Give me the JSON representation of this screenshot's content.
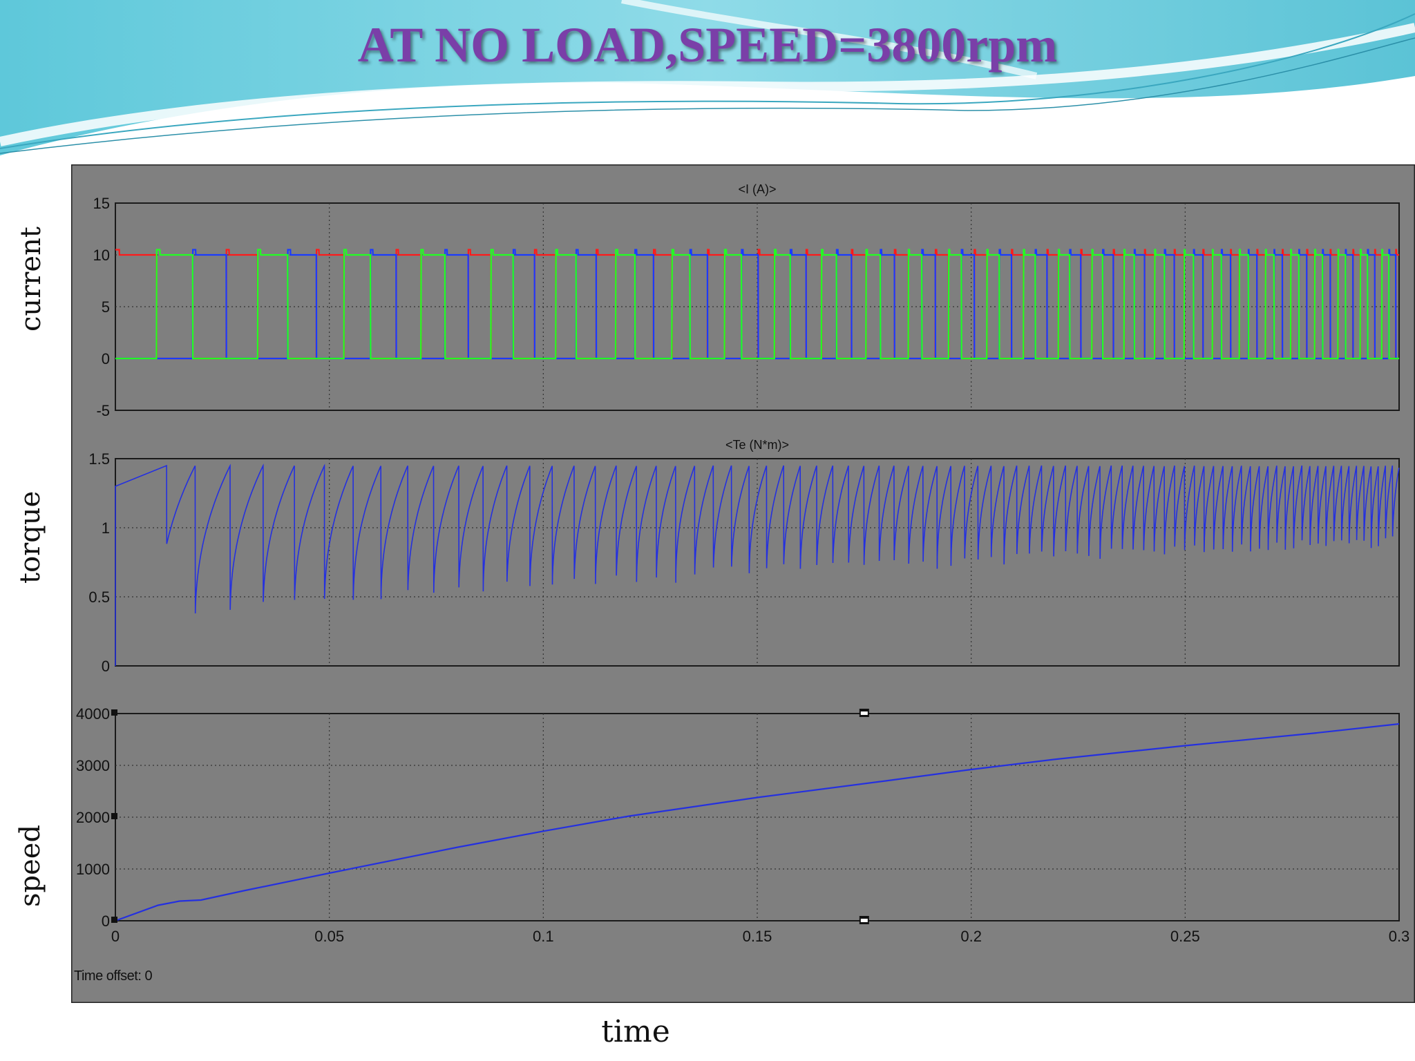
{
  "slide": {
    "title": "AT NO LOAD,SPEED=3800rpm",
    "left_labels": {
      "current": "current",
      "torque": "torque",
      "speed": "speed"
    },
    "bottom_label": "time"
  },
  "scope": {
    "time_offset_label": "Time offset:",
    "time_offset_value": "0"
  },
  "colors": {
    "scope_bg": "#808080",
    "plot_bg": "#7f7f7f",
    "phase_a": "#ff1a1a",
    "phase_b": "#1a3cff",
    "phase_c": "#22ff22",
    "torque": "#2430e0",
    "speed": "#2430e0",
    "title": "#7a3fa8"
  },
  "chart_data": [
    {
      "type": "line",
      "title": "<I (A)>",
      "ylabel": "current",
      "xlim": [
        0,
        0.3
      ],
      "ylim": [
        -5,
        15
      ],
      "yticks": [
        "15",
        "10",
        "5",
        "0",
        "-5"
      ],
      "grid": true,
      "series": [
        {
          "color": "phase_a",
          "description": "phase current, 120-degree trapezoid/square pulses 0 to 10 A, frequency rising with speed"
        },
        {
          "color": "phase_b"
        },
        {
          "color": "phase_c"
        }
      ],
      "amplitude": 10,
      "pulse_period_start": 0.036,
      "pulse_period_end": 0.0048
    },
    {
      "type": "line",
      "title": "<Te (N*m)>",
      "ylabel": "torque",
      "xlim": [
        0,
        0.3
      ],
      "ylim": [
        0,
        1.5
      ],
      "yticks": [
        "1.5",
        "1",
        "0.5",
        "0"
      ],
      "grid": true,
      "series": [
        {
          "color": "torque",
          "peak": 1.45,
          "startup_level": 1.3,
          "trough_start": 0.1,
          "trough_end": 0.82
        }
      ]
    },
    {
      "type": "line",
      "title": "",
      "ylabel": "speed",
      "xlabel": "time",
      "xlim": [
        0,
        0.3
      ],
      "ylim": [
        0,
        4000
      ],
      "yticks": [
        "4000",
        "3000",
        "2000",
        "1000",
        "0"
      ],
      "xticks": [
        "0",
        "0.05",
        "0.1",
        "0.15",
        "0.2",
        "0.25",
        "0.3"
      ],
      "grid": true,
      "series": [
        {
          "color": "speed",
          "x": [
            0,
            0.01,
            0.015,
            0.02,
            0.03,
            0.05,
            0.08,
            0.1,
            0.12,
            0.15,
            0.18,
            0.2,
            0.22,
            0.25,
            0.28,
            0.3
          ],
          "y": [
            0,
            300,
            380,
            400,
            580,
            920,
            1420,
            1730,
            2020,
            2380,
            2700,
            2920,
            3120,
            3380,
            3620,
            3800
          ]
        }
      ]
    }
  ]
}
